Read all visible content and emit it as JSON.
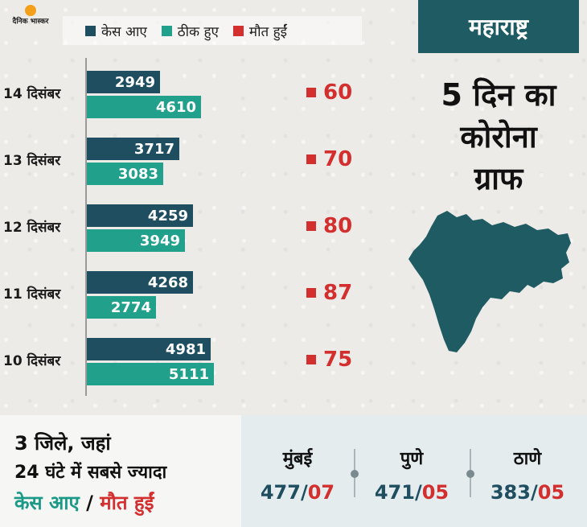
{
  "brand": {
    "name": "दैनिक भास्कर"
  },
  "legend": [
    {
      "label": "केस आए",
      "color": "#1f4e61"
    },
    {
      "label": "ठीक हुए",
      "color": "#21a08c"
    },
    {
      "label": "मौत हुईं",
      "color": "#d32f2f"
    }
  ],
  "chart_data": {
    "type": "bar",
    "orientation": "horizontal",
    "categories": [
      "14 दिसंबर",
      "13 दिसंबर",
      "12 दिसंबर",
      "11 दिसंबर",
      "10 दिसंबर"
    ],
    "series": [
      {
        "name": "केस आए",
        "values": [
          2949,
          3717,
          4259,
          4268,
          4981
        ],
        "color": "#1f4e61"
      },
      {
        "name": "ठीक हुए",
        "values": [
          4610,
          3083,
          3949,
          2774,
          5111
        ],
        "color": "#21a08c"
      },
      {
        "name": "मौत हुईं",
        "values": [
          60,
          70,
          80,
          87,
          75
        ],
        "color": "#d32f2f"
      }
    ],
    "grid": false
  },
  "panel": {
    "state": "महाराष्ट्र",
    "title_lines": [
      "5 दिन का",
      "कोरोना",
      "ग्राफ"
    ]
  },
  "bottom": {
    "heading_line1": "3 जिले, जहां",
    "heading_line2": "24 घंटे में सबसे ज्यादा",
    "heading_cases": "केस आए",
    "heading_sep": " / ",
    "heading_deaths": "मौत हुईं",
    "cities": [
      {
        "name": "मुंबई",
        "cases": "477",
        "deaths": "07"
      },
      {
        "name": "पुणे",
        "cases": "471",
        "deaths": "05"
      },
      {
        "name": "ठाणे",
        "cases": "383",
        "deaths": "05"
      }
    ],
    "slash": "/"
  }
}
